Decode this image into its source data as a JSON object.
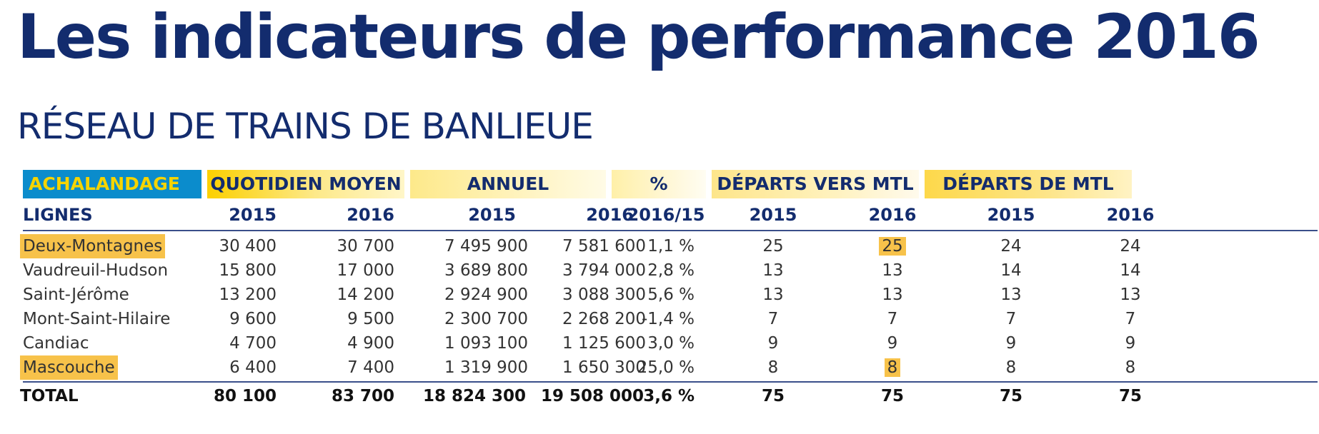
{
  "title": "Les indicateurs de performance 2016",
  "subtitle": "RÉSEAU DE TRAINS DE BANLIEUE",
  "groups": {
    "achalandage": "ACHALANDAGE",
    "quotidien": "QUOTIDIEN MOYEN",
    "annuel": "ANNUEL",
    "pct": "%",
    "departs_vers": "DÉPARTS VERS MTL",
    "departs_de": "DÉPARTS DE MTL"
  },
  "subheader": {
    "lignes": "LIGNES",
    "q2015": "2015",
    "q2016": "2016",
    "a2015": "2015",
    "a2016": "2016",
    "pct": "2016/15",
    "dv2015": "2015",
    "dv2016": "2016",
    "dd2015": "2015",
    "dd2016": "2016"
  },
  "rows": [
    {
      "ligne": "Deux-Montagnes",
      "q2015": "30 400",
      "q2016": "30 700",
      "a2015": "7 495 900",
      "a2016": "7 581 600",
      "pct": "1,1 %",
      "dv2015": "25",
      "dv2016": "25",
      "dd2015": "24",
      "dd2016": "24"
    },
    {
      "ligne": "Vaudreuil-Hudson",
      "q2015": "15 800",
      "q2016": "17 000",
      "a2015": "3 689 800",
      "a2016": "3 794 000",
      "pct": "2,8 %",
      "dv2015": "13",
      "dv2016": "13",
      "dd2015": "14",
      "dd2016": "14"
    },
    {
      "ligne": "Saint-Jérôme",
      "q2015": "13 200",
      "q2016": "14 200",
      "a2015": "2 924 900",
      "a2016": "3 088 300",
      "pct": "5,6 %",
      "dv2015": "13",
      "dv2016": "13",
      "dd2015": "13",
      "dd2016": "13"
    },
    {
      "ligne": "Mont-Saint-Hilaire",
      "q2015": "9 600",
      "q2016": "9 500",
      "a2015": "2 300 700",
      "a2016": "2 268 200",
      "pct": "-1,4 %",
      "dv2015": "7",
      "dv2016": "7",
      "dd2015": "7",
      "dd2016": "7"
    },
    {
      "ligne": "Candiac",
      "q2015": "4 700",
      "q2016": "4 900",
      "a2015": "1 093 100",
      "a2016": "1 125 600",
      "pct": "3,0 %",
      "dv2015": "9",
      "dv2016": "9",
      "dd2015": "9",
      "dd2016": "9"
    },
    {
      "ligne": "Mascouche",
      "q2015": "6 400",
      "q2016": "7 400",
      "a2015": "1 319 900",
      "a2016": "1 650 300",
      "pct": "25,0 %",
      "dv2015": "8",
      "dv2016": "8",
      "dd2015": "8",
      "dd2016": "8"
    }
  ],
  "total": {
    "ligne": "TOTAL",
    "q2015": "80 100",
    "q2016": "83 700",
    "a2015": "18 824 300",
    "a2016": "19 508 000",
    "pct": "3,6 %",
    "dv2015": "75",
    "dv2016": "75",
    "dd2015": "75",
    "dd2016": "75"
  },
  "colors": {
    "navy": "#132c6e",
    "blue_band": "#0b8ccc",
    "yellow_text": "#f6d400",
    "highlight": "#f7c24a"
  }
}
